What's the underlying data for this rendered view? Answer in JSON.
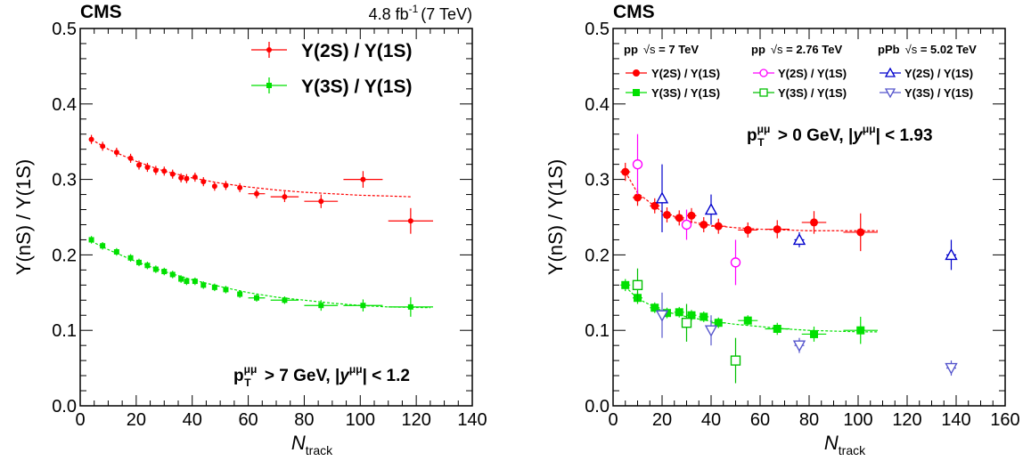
{
  "chart_data": [
    {
      "type": "scatter",
      "experiment": "CMS",
      "lumi_label": "4.8 fb",
      "lumi_exp": "-1",
      "energy_label": "(7 TeV)",
      "xlabel": "N",
      "xlabel_sub": "track",
      "ylabel": "Υ(nS) / Υ(1S)",
      "xlim": [
        0,
        140
      ],
      "ylim": [
        0,
        0.5
      ],
      "xticks": [
        0,
        20,
        40,
        60,
        80,
        100,
        120,
        140
      ],
      "yticks": [
        0,
        0.1,
        0.2,
        0.3,
        0.4,
        0.5
      ],
      "xtick_labels": [
        "0",
        "20",
        "40",
        "60",
        "80",
        "100",
        "120",
        "140"
      ],
      "ytick_labels": [
        "0.0",
        "0.1",
        "0.2",
        "0.3",
        "0.4",
        "0.5"
      ],
      "annotation": {
        "p": "p",
        "sup": "μμ",
        "sub": "T",
        "cut": " > 7 GeV, ",
        "y": "y",
        "ysup": "μμ",
        "ycut": "| < 1.2",
        "bar": "|"
      },
      "series": [
        {
          "name": "Υ(2S) / Υ(1S)",
          "color": "#ff0000",
          "marker": "dot",
          "x": [
            4,
            8,
            13,
            18,
            21,
            24,
            27,
            30,
            33,
            36,
            38,
            41,
            44,
            48,
            52,
            57,
            63,
            73,
            86,
            101,
            118
          ],
          "y": [
            0.353,
            0.344,
            0.336,
            0.328,
            0.319,
            0.316,
            0.312,
            0.311,
            0.307,
            0.302,
            0.301,
            0.303,
            0.297,
            0.291,
            0.292,
            0.289,
            0.281,
            0.277,
            0.271,
            0.3,
            0.245
          ],
          "xerr": [
            0,
            0,
            0,
            0,
            0,
            0,
            0,
            0,
            0,
            0,
            0,
            0,
            0,
            0,
            0,
            0,
            3,
            5,
            6,
            7,
            8
          ],
          "yerr": [
            0.006,
            0.006,
            0.006,
            0.006,
            0.006,
            0.006,
            0.006,
            0.006,
            0.006,
            0.006,
            0.006,
            0.006,
            0.006,
            0.006,
            0.006,
            0.006,
            0.006,
            0.007,
            0.009,
            0.011,
            0.017
          ],
          "fit_x": [
            4,
            10,
            20,
            30,
            40,
            50,
            60,
            70,
            80,
            90,
            100,
            110,
            118
          ],
          "fit_y": [
            0.353,
            0.34,
            0.324,
            0.311,
            0.302,
            0.295,
            0.29,
            0.286,
            0.283,
            0.281,
            0.279,
            0.278,
            0.277
          ]
        },
        {
          "name": "Υ(3S) / Υ(1S)",
          "color": "#00e000",
          "marker": "square",
          "x": [
            4,
            8,
            13,
            18,
            21,
            24,
            27,
            30,
            33,
            36,
            38,
            41,
            44,
            48,
            52,
            57,
            63,
            73,
            86,
            101,
            118
          ],
          "y": [
            0.22,
            0.212,
            0.204,
            0.196,
            0.19,
            0.186,
            0.181,
            0.178,
            0.174,
            0.168,
            0.165,
            0.165,
            0.16,
            0.157,
            0.154,
            0.148,
            0.143,
            0.14,
            0.133,
            0.133,
            0.131
          ],
          "xerr": [
            0,
            0,
            0,
            0,
            0,
            0,
            0,
            0,
            0,
            0,
            0,
            0,
            0,
            0,
            0,
            0,
            3,
            5,
            6,
            7,
            8
          ],
          "yerr": [
            0.005,
            0.005,
            0.005,
            0.005,
            0.005,
            0.005,
            0.005,
            0.005,
            0.005,
            0.005,
            0.005,
            0.005,
            0.005,
            0.005,
            0.005,
            0.005,
            0.005,
            0.005,
            0.007,
            0.008,
            0.013
          ],
          "fit_x": [
            4,
            10,
            20,
            30,
            40,
            50,
            60,
            70,
            80,
            90,
            100,
            110,
            125
          ],
          "fit_y": [
            0.218,
            0.207,
            0.191,
            0.178,
            0.167,
            0.158,
            0.15,
            0.144,
            0.14,
            0.136,
            0.133,
            0.131,
            0.13
          ]
        }
      ],
      "legend": {
        "position": "top-right"
      }
    },
    {
      "type": "scatter",
      "experiment": "CMS",
      "xlabel": "N",
      "xlabel_sub": "track",
      "ylabel": "Υ(nS) / Υ(1S)",
      "xlim": [
        0,
        160
      ],
      "ylim": [
        0,
        0.5
      ],
      "xticks": [
        0,
        20,
        40,
        60,
        80,
        100,
        120,
        140,
        160
      ],
      "yticks": [
        0,
        0.1,
        0.2,
        0.3,
        0.4,
        0.5
      ],
      "xtick_labels": [
        "0",
        "20",
        "40",
        "60",
        "80",
        "100",
        "120",
        "140",
        "160"
      ],
      "ytick_labels": [
        "0.0",
        "0.1",
        "0.2",
        "0.3",
        "0.4",
        "0.5"
      ],
      "annotation": {
        "p": "p",
        "sup": "μμ",
        "sub": "T",
        "cut": " > 0 GeV, ",
        "y": "y",
        "ysup": "μμ",
        "ycut": "| < 1.93",
        "bar": "|"
      },
      "legend_headers": [
        {
          "pre": "pp",
          "sqrt": "√",
          "s": "s",
          "post": " = 7 TeV"
        },
        {
          "pre": "pp",
          "sqrt": "√",
          "s": "s",
          "post": " = 2.76 TeV"
        },
        {
          "pre": "pPb",
          "sqrt": "√",
          "s": "s",
          "post": " = 5.02 TeV"
        }
      ],
      "series": [
        {
          "name": "Υ(2S) / Υ(1S)",
          "dataset": "pp 7 TeV",
          "color": "#ff0000",
          "marker": "circle",
          "x": [
            5,
            10,
            17,
            22,
            27,
            32,
            37,
            43,
            55,
            67,
            82,
            101
          ],
          "y": [
            0.31,
            0.276,
            0.265,
            0.253,
            0.249,
            0.252,
            0.24,
            0.238,
            0.233,
            0.234,
            0.243,
            0.23
          ],
          "xerr": [
            2,
            2,
            2,
            2,
            2,
            2,
            2,
            3,
            4,
            5,
            5,
            7
          ],
          "yerr": [
            0.012,
            0.011,
            0.01,
            0.01,
            0.01,
            0.01,
            0.01,
            0.01,
            0.01,
            0.012,
            0.015,
            0.025
          ],
          "fit_x": [
            5,
            10,
            20,
            30,
            40,
            50,
            60,
            70,
            80,
            90,
            101,
            108
          ],
          "fit_y": [
            0.31,
            0.282,
            0.257,
            0.245,
            0.239,
            0.236,
            0.234,
            0.233,
            0.232,
            0.232,
            0.232,
            0.232
          ]
        },
        {
          "name": "Υ(3S) / Υ(1S)",
          "dataset": "pp 7 TeV",
          "color": "#00e000",
          "marker": "square",
          "x": [
            5,
            10,
            17,
            22,
            27,
            32,
            37,
            43,
            55,
            67,
            82,
            101
          ],
          "y": [
            0.16,
            0.143,
            0.13,
            0.123,
            0.124,
            0.12,
            0.118,
            0.11,
            0.113,
            0.102,
            0.095,
            0.1
          ],
          "xerr": [
            2,
            2,
            2,
            2,
            2,
            2,
            2,
            3,
            4,
            5,
            5,
            7
          ],
          "yerr": [
            0.008,
            0.008,
            0.007,
            0.007,
            0.007,
            0.007,
            0.007,
            0.007,
            0.007,
            0.008,
            0.01,
            0.018
          ],
          "fit_x": [
            5,
            10,
            20,
            30,
            40,
            50,
            60,
            70,
            80,
            90,
            101,
            108
          ],
          "fit_y": [
            0.158,
            0.142,
            0.126,
            0.118,
            0.112,
            0.108,
            0.105,
            0.102,
            0.1,
            0.099,
            0.098,
            0.098
          ]
        },
        {
          "name": "Υ(2S) / Υ(1S)",
          "dataset": "pp 2.76 TeV",
          "color": "#ff00ff",
          "marker": "open-circle",
          "x": [
            10,
            30,
            50
          ],
          "y": [
            0.32,
            0.24,
            0.19
          ],
          "xerr": [
            0,
            0,
            0
          ],
          "yerr": [
            0.04,
            0.02,
            0.03
          ]
        },
        {
          "name": "Υ(3S) / Υ(1S)",
          "dataset": "pp 2.76 TeV",
          "color": "#00c000",
          "marker": "open-square",
          "x": [
            10,
            30,
            50
          ],
          "y": [
            0.16,
            0.11,
            0.06
          ],
          "xerr": [
            0,
            0,
            0
          ],
          "yerr": [
            0.022,
            0.025,
            0.03
          ]
        },
        {
          "name": "Υ(2S) / Υ(1S)",
          "dataset": "pPb 5.02 TeV",
          "color": "#0000cc",
          "marker": "open-triangle-up",
          "x": [
            20,
            40,
            76,
            138
          ],
          "y": [
            0.275,
            0.26,
            0.22,
            0.2
          ],
          "xerr": [
            0,
            0,
            2,
            2
          ],
          "yerr": [
            0.045,
            0.02,
            0.01,
            0.02
          ]
        },
        {
          "name": "Υ(3S) / Υ(1S)",
          "dataset": "pPb 5.02 TeV",
          "color": "#5555cc",
          "marker": "open-triangle-down",
          "x": [
            20,
            40,
            76,
            138
          ],
          "y": [
            0.12,
            0.1,
            0.08,
            0.05
          ],
          "xerr": [
            0,
            0,
            2,
            2
          ],
          "yerr": [
            0.03,
            0.02,
            0.01,
            0.01
          ]
        }
      ],
      "legend": {
        "position": "top"
      }
    }
  ]
}
